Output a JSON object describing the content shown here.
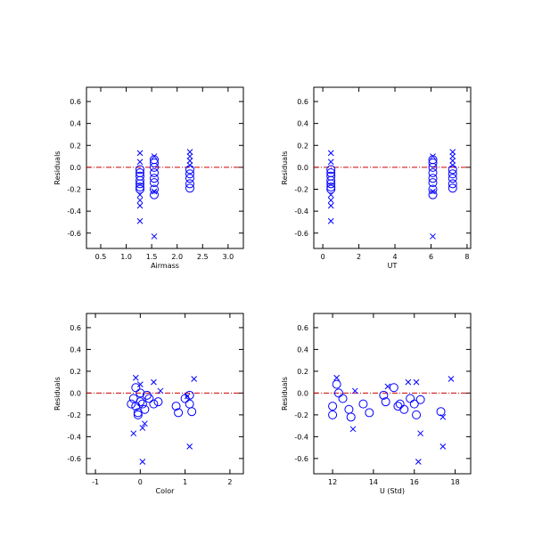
{
  "chart_data": [
    {
      "type": "scatter",
      "x_label": "Airmass",
      "y_label": "Residuals",
      "xlim": [
        0.22,
        3.3
      ],
      "ylim": [
        -0.74,
        0.73
      ],
      "xticks": [
        0.5,
        {
          "value": 1,
          "label": "1.0"
        },
        1.5,
        {
          "value": 2,
          "label": "2.0"
        },
        2.5,
        {
          "value": 3,
          "label": "3.0"
        }
      ],
      "yticks": [
        -0.6,
        -0.4,
        -0.2,
        {
          "value": 0,
          "label": "0.0"
        },
        0.2,
        0.4,
        0.6
      ],
      "hline": 0,
      "hline_color": "#cc0000",
      "series": [
        {
          "marker": "circle",
          "color": "#0000ff",
          "x": [
            1.27,
            1.27,
            1.27,
            1.27,
            1.27,
            1.27,
            1.27,
            1.55,
            1.55,
            1.55,
            1.55,
            1.55,
            1.55,
            1.55,
            1.55,
            2.25,
            2.25,
            2.25,
            2.25,
            2.25
          ],
          "values": [
            -0.02,
            -0.05,
            -0.08,
            -0.12,
            -0.15,
            -0.18,
            -0.2,
            0.07,
            0.04,
            0.0,
            -0.05,
            -0.1,
            -0.14,
            -0.2,
            -0.25,
            -0.02,
            -0.06,
            -0.1,
            -0.15,
            -0.19
          ]
        },
        {
          "marker": "cross",
          "color": "#0000ff",
          "x": [
            1.27,
            1.27,
            1.27,
            1.27,
            1.27,
            1.27,
            1.55,
            1.55,
            1.55,
            2.25,
            2.25,
            2.25,
            2.25
          ],
          "values": [
            0.13,
            0.05,
            -0.25,
            -0.3,
            -0.35,
            -0.49,
            0.1,
            -0.22,
            -0.63,
            0.14,
            0.1,
            0.06,
            0.02
          ]
        }
      ]
    },
    {
      "type": "scatter",
      "x_label": "UT",
      "y_label": "Residuals",
      "xlim": [
        -0.5,
        8.2
      ],
      "ylim": [
        -0.74,
        0.73
      ],
      "xticks": [
        0,
        2,
        4,
        6,
        8
      ],
      "yticks": [
        -0.6,
        -0.4,
        -0.2,
        {
          "value": 0,
          "label": "0.0"
        },
        0.2,
        0.4,
        0.6
      ],
      "hline": 0,
      "hline_color": "#cc0000",
      "series": [
        {
          "marker": "circle",
          "color": "#0000ff",
          "x": [
            0.45,
            0.45,
            0.45,
            0.45,
            0.45,
            0.45,
            0.45,
            6.1,
            6.1,
            6.1,
            6.1,
            6.1,
            6.1,
            6.1,
            6.1,
            7.2,
            7.2,
            7.2,
            7.2,
            7.2
          ],
          "values": [
            -0.02,
            -0.05,
            -0.08,
            -0.12,
            -0.15,
            -0.18,
            -0.2,
            0.07,
            0.04,
            0.0,
            -0.05,
            -0.1,
            -0.14,
            -0.2,
            -0.25,
            -0.02,
            -0.06,
            -0.1,
            -0.15,
            -0.19
          ]
        },
        {
          "marker": "cross",
          "color": "#0000ff",
          "x": [
            0.45,
            0.45,
            0.45,
            0.45,
            0.45,
            0.45,
            6.1,
            6.1,
            6.1,
            7.2,
            7.2,
            7.2,
            7.2
          ],
          "values": [
            0.13,
            0.05,
            -0.25,
            -0.3,
            -0.35,
            -0.49,
            0.1,
            -0.22,
            -0.63,
            0.14,
            0.1,
            0.06,
            0.02
          ]
        }
      ]
    },
    {
      "type": "scatter",
      "x_label": "Color",
      "y_label": "Residuals",
      "xlim": [
        -1.2,
        2.3
      ],
      "ylim": [
        -0.74,
        0.73
      ],
      "xticks": [
        -1,
        0,
        1,
        2
      ],
      "yticks": [
        -0.6,
        -0.4,
        -0.2,
        {
          "value": 0,
          "label": "0.0"
        },
        0.2,
        0.4,
        0.6
      ],
      "hline": 0,
      "hline_color": "#cc0000",
      "series": [
        {
          "marker": "circle",
          "color": "#0000ff",
          "x": [
            -0.15,
            -0.1,
            -0.05,
            0.0,
            0.05,
            0.1,
            -0.2,
            -0.1,
            0.0,
            0.2,
            0.3,
            0.4,
            0.8,
            0.85,
            1.0,
            1.1,
            1.15,
            1.1,
            -0.05,
            0.15
          ],
          "values": [
            -0.05,
            -0.12,
            -0.18,
            -0.08,
            -0.1,
            -0.15,
            -0.1,
            0.05,
            0.0,
            -0.05,
            -0.1,
            -0.08,
            -0.12,
            -0.18,
            -0.05,
            -0.1,
            -0.17,
            -0.02,
            -0.2,
            -0.02
          ]
        },
        {
          "marker": "cross",
          "color": "#0000ff",
          "x": [
            -0.1,
            0.0,
            0.3,
            -0.15,
            0.05,
            0.1,
            0.05,
            1.2,
            1.1,
            0.45,
            1.05
          ],
          "values": [
            0.14,
            0.08,
            0.1,
            -0.37,
            -0.32,
            -0.28,
            -0.63,
            0.13,
            -0.49,
            0.02,
            -0.03
          ]
        }
      ]
    },
    {
      "type": "scatter",
      "x_label": "U (Std)",
      "y_label": "Residuals",
      "xlim": [
        11.08,
        18.76
      ],
      "ylim": [
        -0.74,
        0.73
      ],
      "xticks": [
        12,
        14,
        16,
        18
      ],
      "yticks": [
        -0.6,
        -0.4,
        -0.2,
        {
          "value": 0,
          "label": "0.0"
        },
        0.2,
        0.4,
        0.6
      ],
      "hline": 0,
      "hline_color": "#cc0000",
      "series": [
        {
          "marker": "circle",
          "color": "#0000ff",
          "x": [
            12,
            12,
            12.2,
            12.3,
            12.5,
            12.8,
            12.9,
            13.5,
            13.8,
            14.5,
            14.6,
            15,
            15.2,
            15.5,
            15.8,
            16.0,
            16.3,
            17.3,
            15.3,
            16.1
          ],
          "values": [
            -0.2,
            -0.12,
            0.08,
            0.0,
            -0.05,
            -0.15,
            -0.22,
            -0.1,
            -0.18,
            -0.02,
            -0.08,
            0.05,
            -0.12,
            -0.15,
            -0.05,
            -0.1,
            -0.06,
            -0.17,
            -0.1,
            -0.2
          ]
        },
        {
          "marker": "cross",
          "color": "#0000ff",
          "x": [
            12.2,
            13,
            13.1,
            14.7,
            15.7,
            16.1,
            16.2,
            16.3,
            17.4,
            17.8,
            17.4
          ],
          "values": [
            0.14,
            -0.33,
            0.02,
            0.06,
            0.1,
            0.1,
            -0.63,
            -0.37,
            -0.49,
            0.13,
            -0.22
          ]
        }
      ]
    }
  ]
}
